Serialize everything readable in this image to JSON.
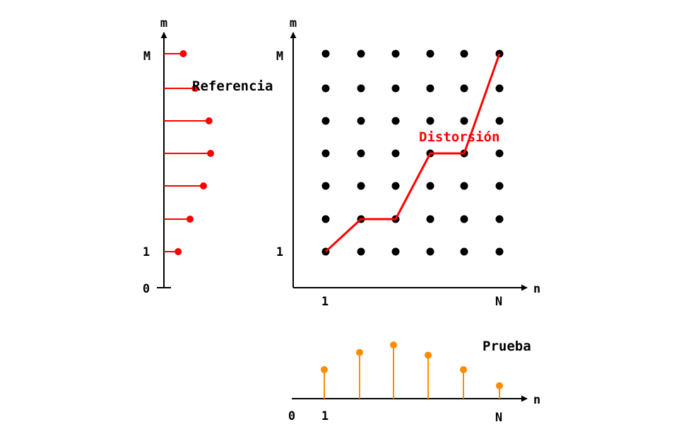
{
  "reference": {
    "axis_label": "m",
    "tick_top": "M",
    "tick_one": "1",
    "tick_zero": "0",
    "label": "Referencia",
    "color": "#ff0000",
    "stem_values": [
      0.36,
      0.66,
      1.0,
      1.18,
      1.14,
      0.79,
      0.49
    ]
  },
  "grid": {
    "y_axis_label": "m",
    "x_axis_label": "n",
    "y_tick_top": "M",
    "y_tick_one": "1",
    "x_tick_one": "1",
    "x_tick_last": "N",
    "columns": 6,
    "rows": 7,
    "dot_color": "#000000",
    "path_label": "Distorsión",
    "path_color": "#ff0000",
    "path": [
      [
        1,
        1
      ],
      [
        2,
        2
      ],
      [
        3,
        2
      ],
      [
        4,
        4
      ],
      [
        5,
        4
      ],
      [
        6,
        7
      ]
    ]
  },
  "test": {
    "label": "Prueba",
    "x_axis_label": "n",
    "tick_zero": "0",
    "tick_one": "1",
    "tick_last": "N",
    "color": "#ff8c00",
    "stem_values": [
      0.54,
      0.86,
      1.0,
      0.81,
      0.54,
      0.24
    ]
  }
}
